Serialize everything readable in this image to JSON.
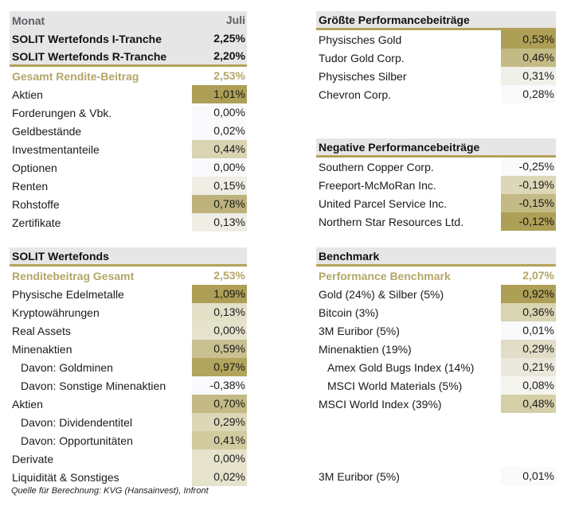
{
  "top_left": {
    "header": {
      "label": "Monat",
      "value": "Juli"
    },
    "tranches": [
      {
        "label": "SOLIT Wertefonds I-Tranche",
        "value": "2,25%"
      },
      {
        "label": "SOLIT Wertefonds R-Tranche",
        "value": "2,20%"
      }
    ],
    "total": {
      "label": "Gesamt Rendite-Beitrag",
      "value": "2,53%"
    },
    "rows": [
      {
        "label": "Aktien",
        "value": "1,01%",
        "bg": "#ad9f55"
      },
      {
        "label": "Forderungen & Vbk.",
        "value": "0,00%",
        "bg": "#fafafc"
      },
      {
        "label": "Geldbestände",
        "value": "0,02%",
        "bg": "#fafafc"
      },
      {
        "label": "Investmentanteile",
        "value": "0,44%",
        "bg": "#d9d4b2"
      },
      {
        "label": "Optionen",
        "value": "0,00%",
        "bg": "#fafafc"
      },
      {
        "label": "Renten",
        "value": "0,15%",
        "bg": "#efede4"
      },
      {
        "label": "Rohstoffe",
        "value": "0,78%",
        "bg": "#bdb27c"
      },
      {
        "label": "Zertifikate",
        "value": "0,13%",
        "bg": "#efede4"
      }
    ]
  },
  "top_right": {
    "header": "Größte Performancebeiträge",
    "rows": [
      {
        "label": "Physisches Gold",
        "value": "0,53%",
        "bg": "#ad9f55"
      },
      {
        "label": "Tudor Gold Corp.",
        "value": "0,46%",
        "bg": "#c4ba85"
      },
      {
        "label": "Physisches Silber",
        "value": "0,31%",
        "bg": "#f1f0e8"
      },
      {
        "label": "Chevron Corp.",
        "value": "0,28%",
        "bg": "#fafafc"
      }
    ]
  },
  "negative": {
    "header": "Negative Performancebeiträge",
    "rows": [
      {
        "label": "Southern Copper Corp.",
        "value": "-0,25%",
        "bg": "#fafafc"
      },
      {
        "label": "Freeport-McMoRan Inc.",
        "value": "-0,19%",
        "bg": "#dcd7b6"
      },
      {
        "label": "United Parcel Service Inc.",
        "value": "-0,15%",
        "bg": "#c4ba85"
      },
      {
        "label": "Northern Star Resources Ltd.",
        "value": "-0,12%",
        "bg": "#ad9f55"
      }
    ]
  },
  "fund": {
    "header": "SOLIT Wertefonds",
    "total": {
      "label": "Renditebeitrag Gesamt",
      "value": "2,53%"
    },
    "rows": [
      {
        "label": "Physische Edelmetalle",
        "value": "1,09%",
        "bg": "#ad9f55",
        "sub": false
      },
      {
        "label": "Kryptowährungen",
        "value": "0,13%",
        "bg": "#e3e0c8",
        "sub": false
      },
      {
        "label": "Real Assets",
        "value": "0,00%",
        "bg": "#e6e3cd",
        "sub": false
      },
      {
        "label": "Minenaktien",
        "value": "0,59%",
        "bg": "#c9c092",
        "sub": false
      },
      {
        "label": "Davon: Goldminen",
        "value": "0,97%",
        "bg": "#b1a45c",
        "sub": true
      },
      {
        "label": "Davon: Sonstige Minenaktien",
        "value": "-0,38%",
        "bg": "#fafafc",
        "sub": true
      },
      {
        "label": "Aktien",
        "value": "0,70%",
        "bg": "#c4ba85",
        "sub": false
      },
      {
        "label": "Davon: Dividendentitel",
        "value": "0,29%",
        "bg": "#dcd7b6",
        "sub": true
      },
      {
        "label": "Davon: Opportunitäten",
        "value": "0,41%",
        "bg": "#d2cba0",
        "sub": true
      },
      {
        "label": "Derivate",
        "value": "0,00%",
        "bg": "#e6e3cd",
        "sub": false
      },
      {
        "label": "Liquidität & Sonstiges",
        "value": "0,02%",
        "bg": "#e6e3cd",
        "sub": false
      }
    ],
    "footnote": "Quelle für Berechnung: KVG (Hansainvest), Infront"
  },
  "benchmark": {
    "header": "Benchmark",
    "total": {
      "label": "Performance Benchmark",
      "value": "2,07%"
    },
    "rows": [
      {
        "label": "Gold (24%) & Silber (5%)",
        "value": "0,92%",
        "bg": "#ad9f55",
        "sub": false
      },
      {
        "label": "Bitcoin (3%)",
        "value": "0,36%",
        "bg": "#d9d4b2",
        "sub": false
      },
      {
        "label": "3M Euribor (5%)",
        "value": "0,01%",
        "bg": "#fafafc",
        "sub": false
      },
      {
        "label": "Minenaktien (19%)",
        "value": "0,29%",
        "bg": "#e1ddc6",
        "sub": false
      },
      {
        "label": "Amex Gold Bugs Index (14%)",
        "value": "0,21%",
        "bg": "#eae8da",
        "sub": true
      },
      {
        "label": "MSCI World Materials (5%)",
        "value": "0,08%",
        "bg": "#f5f4ee",
        "sub": true
      },
      {
        "label": "MSCI World Index (39%)",
        "value": "0,48%",
        "bg": "#d5cfa8",
        "sub": false
      }
    ],
    "last": {
      "label": "3M Euribor (5%)",
      "value": "0,01%",
      "bg": "#fafafc"
    }
  }
}
